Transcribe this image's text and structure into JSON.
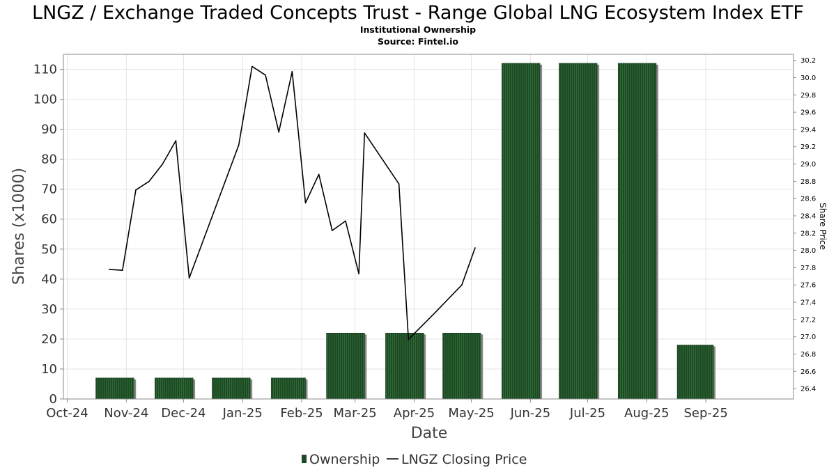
{
  "chart_data": {
    "type": "bar",
    "title": "LNGZ / Exchange Traded Concepts Trust - Range Global LNG Ecosystem Index ETF",
    "subtitle_lines": [
      "Institutional Ownership",
      "Source: Fintel.io"
    ],
    "xlabel": "Date",
    "ylabel": "Shares (x1000)",
    "y2label": "Share Price",
    "x_ticks": [
      "Oct-24",
      "Nov-24",
      "Dec-24",
      "Jan-25",
      "Feb-25",
      "Mar-25",
      "Apr-25",
      "May-25",
      "Jun-25",
      "Jul-25",
      "Aug-25",
      "Sep-25"
    ],
    "x_tick_dates": [
      "2024-10-01",
      "2024-11-01",
      "2024-12-01",
      "2025-01-01",
      "2025-02-01",
      "2025-03-01",
      "2025-04-01",
      "2025-05-01",
      "2025-06-01",
      "2025-07-01",
      "2025-08-01",
      "2025-09-01"
    ],
    "xlim": [
      "2024-09-29",
      "2025-10-17"
    ],
    "ylim": [
      0,
      115
    ],
    "y_ticks": [
      0,
      10,
      20,
      30,
      40,
      50,
      60,
      70,
      80,
      90,
      100,
      110
    ],
    "y2lim": [
      26.28,
      30.27
    ],
    "y2_ticks": [
      "26.4",
      "26.6",
      "26.8",
      "27.0",
      "27.2",
      "27.4",
      "27.6",
      "27.8",
      "28.0",
      "28.2",
      "28.4",
      "28.6",
      "28.8",
      "29.0",
      "29.2",
      "29.4",
      "29.6",
      "29.8",
      "30.0",
      "30.2"
    ],
    "grid": true,
    "legend_position": "bottom",
    "series": [
      {
        "name": "Ownership",
        "kind": "bar",
        "axis": "left",
        "color": "#1e4a25",
        "bars": [
          {
            "start": "2024-10-16",
            "end": "2024-11-05",
            "value": 7
          },
          {
            "start": "2024-11-16",
            "end": "2024-12-06",
            "value": 7
          },
          {
            "start": "2024-12-16",
            "end": "2025-01-05",
            "value": 7
          },
          {
            "start": "2025-01-16",
            "end": "2025-02-03",
            "value": 7
          },
          {
            "start": "2025-02-14",
            "end": "2025-03-06",
            "value": 22
          },
          {
            "start": "2025-03-17",
            "end": "2025-04-06",
            "value": 22
          },
          {
            "start": "2025-04-16",
            "end": "2025-05-06",
            "value": 22
          },
          {
            "start": "2025-05-17",
            "end": "2025-06-06",
            "value": 112
          },
          {
            "start": "2025-06-16",
            "end": "2025-07-06",
            "value": 112
          },
          {
            "start": "2025-07-17",
            "end": "2025-08-06",
            "value": 112
          },
          {
            "start": "2025-08-17",
            "end": "2025-09-05",
            "value": 18
          }
        ]
      },
      {
        "name": "LNGZ Closing Price",
        "kind": "line",
        "axis": "right",
        "color": "#000000",
        "points": [
          {
            "x": "2024-10-23",
            "y": 27.78
          },
          {
            "x": "2024-10-30",
            "y": 27.77
          },
          {
            "x": "2024-11-06",
            "y": 28.7
          },
          {
            "x": "2024-11-13",
            "y": 28.8
          },
          {
            "x": "2024-11-20",
            "y": 29.0
          },
          {
            "x": "2024-11-27",
            "y": 29.27
          },
          {
            "x": "2024-12-04",
            "y": 27.68
          },
          {
            "x": "2024-12-30",
            "y": 29.22
          },
          {
            "x": "2025-01-06",
            "y": 30.13
          },
          {
            "x": "2025-01-13",
            "y": 30.03
          },
          {
            "x": "2025-01-20",
            "y": 29.37
          },
          {
            "x": "2025-01-27",
            "y": 30.07
          },
          {
            "x": "2025-02-03",
            "y": 28.55
          },
          {
            "x": "2025-02-10",
            "y": 28.88
          },
          {
            "x": "2025-02-17",
            "y": 28.23
          },
          {
            "x": "2025-02-24",
            "y": 28.34
          },
          {
            "x": "2025-03-03",
            "y": 27.73
          },
          {
            "x": "2025-03-06",
            "y": 29.36
          },
          {
            "x": "2025-03-24",
            "y": 28.77
          },
          {
            "x": "2025-03-29",
            "y": 26.97
          },
          {
            "x": "2025-04-12",
            "y": 27.28
          },
          {
            "x": "2025-04-26",
            "y": 27.6
          },
          {
            "x": "2025-05-03",
            "y": 28.03
          }
        ]
      }
    ]
  }
}
